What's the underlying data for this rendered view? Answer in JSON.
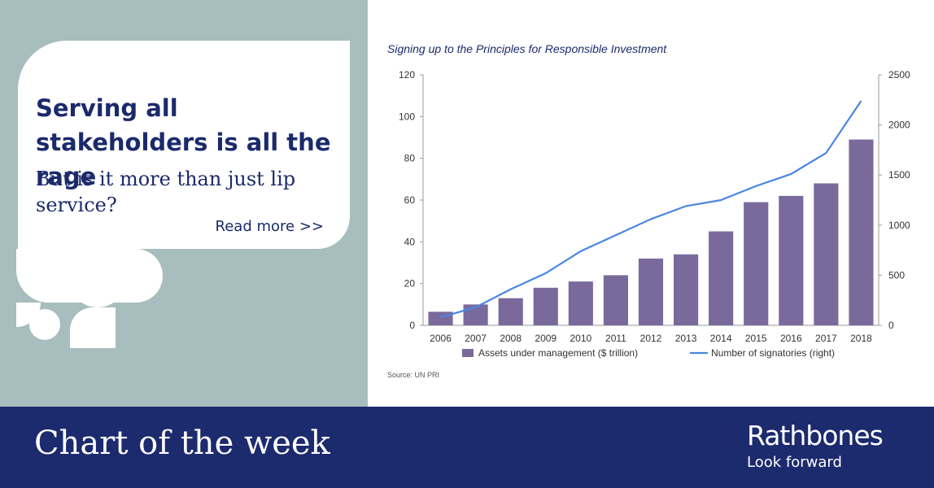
{
  "headline": "Serving all stakeholders is all the rage",
  "subhead": "But is it more than just lip service?",
  "read_more": "Read more >>",
  "footer": {
    "title": "Chart of the week",
    "brand": "Rathbones",
    "tagline": "Look forward"
  },
  "colors": {
    "navy": "#1c2a6e",
    "panel": "#a8bdbd",
    "bar": "#7a6a9c",
    "line": "#4a86e0"
  },
  "chart_data": {
    "type": "bar",
    "title": "Signing up to the Principles for Responsible Investment",
    "source": "Source: UN PRI",
    "categories": [
      "2006",
      "2007",
      "2008",
      "2009",
      "2010",
      "2011",
      "2012",
      "2013",
      "2014",
      "2015",
      "2016",
      "2017",
      "2018"
    ],
    "ylim_left": [
      0,
      120
    ],
    "yticks_left": [
      0,
      20,
      40,
      60,
      80,
      100,
      120
    ],
    "ylim_right": [
      0,
      2500
    ],
    "yticks_right": [
      0,
      500,
      1000,
      1500,
      2000,
      2500
    ],
    "legend_placement": "bottom",
    "grid": false,
    "series": [
      {
        "name": "Assets under management ($ trillion)",
        "type": "bar",
        "axis": "left",
        "values": [
          6.5,
          10,
          13,
          18,
          21,
          24,
          32,
          34,
          45,
          59,
          62,
          68,
          89
        ]
      },
      {
        "name": "Number of signatories (right)",
        "type": "line",
        "axis": "right",
        "values": [
          80,
          180,
          360,
          520,
          740,
          900,
          1060,
          1190,
          1250,
          1390,
          1510,
          1720,
          2240
        ]
      }
    ]
  }
}
